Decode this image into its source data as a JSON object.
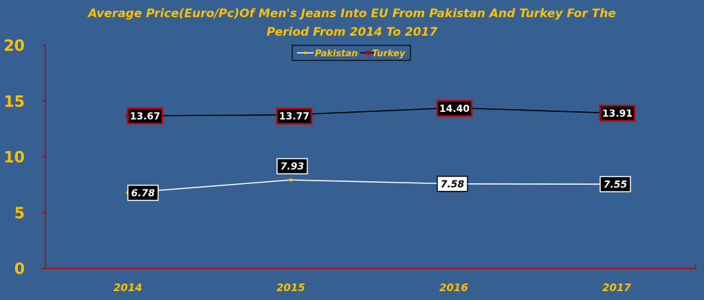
{
  "chart_data": {
    "type": "line",
    "title_lines": [
      "Average Price(Euro/Pc)Of Men's Jeans Into EU From Pakistan And Turkey For The",
      "Period From 2014 To 2017"
    ],
    "categories": [
      "2014",
      "2015",
      "2016",
      "2017"
    ],
    "series": [
      {
        "name": "Pakistan",
        "values": [
          6.78,
          7.93,
          7.58,
          7.55
        ],
        "labels": [
          "6.78",
          "7.93",
          "7.58",
          "7.55"
        ]
      },
      {
        "name": "Turkey",
        "values": [
          13.67,
          13.77,
          14.4,
          13.91
        ],
        "labels": [
          "13.67",
          "13.77",
          "14.40",
          "13.91"
        ]
      }
    ],
    "ylim": [
      0,
      20
    ],
    "yticks": [
      "0",
      "5",
      "10",
      "15",
      "20"
    ],
    "grid": false,
    "legend_position": "top-center"
  },
  "colors": {
    "background": "#376092",
    "title": "#FFC000",
    "axis_text": "#FFC000",
    "axis_line": "#C00000",
    "pakistan_line": "#FFFFFF",
    "pakistan_marker": "#FFC000",
    "turkey_line": "#000000",
    "turkey_marker": "#C00000",
    "label_fill_dark": "#000000",
    "label_fill_light": "#FFFFFF"
  }
}
